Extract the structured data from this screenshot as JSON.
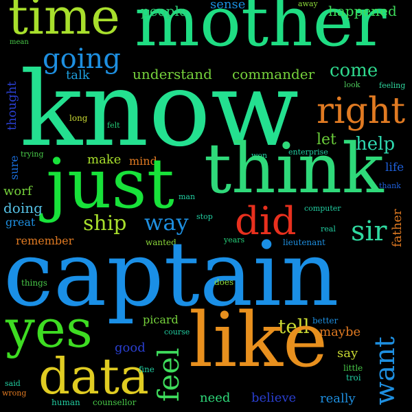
{
  "cloud": {
    "background": "#000000",
    "words": [
      {
        "text": "time",
        "color": "#a8df2c",
        "rotated": false
      },
      {
        "text": "mother",
        "color": "#1fdd83",
        "rotated": false
      },
      {
        "text": "people",
        "color": "#2ecf74",
        "rotated": false
      },
      {
        "text": "sense",
        "color": "#1a8fdf",
        "rotated": false
      },
      {
        "text": "away",
        "color": "#8cd93a",
        "rotated": false
      },
      {
        "text": "happened",
        "color": "#3edc5c",
        "rotated": false
      },
      {
        "text": "mean",
        "color": "#48c848",
        "rotated": false
      },
      {
        "text": "going",
        "color": "#1e8fe0",
        "rotated": false
      },
      {
        "text": "talk",
        "color": "#1ea0e0",
        "rotated": false
      },
      {
        "text": "understand",
        "color": "#76d23c",
        "rotated": false
      },
      {
        "text": "commander",
        "color": "#76d23c",
        "rotated": false
      },
      {
        "text": "come",
        "color": "#2fd98e",
        "rotated": false
      },
      {
        "text": "look",
        "color": "#4ecb5c",
        "rotated": false
      },
      {
        "text": "feeling",
        "color": "#2fd9a0",
        "rotated": false
      },
      {
        "text": "thought",
        "color": "#2a3fd0",
        "rotated": true
      },
      {
        "text": "know",
        "color": "#24e090",
        "rotated": false
      },
      {
        "text": "right",
        "color": "#e07a22",
        "rotated": false
      },
      {
        "text": "long",
        "color": "#c8d832",
        "rotated": false
      },
      {
        "text": "felt",
        "color": "#26d07a",
        "rotated": false
      },
      {
        "text": "let",
        "color": "#6acd3a",
        "rotated": false
      },
      {
        "text": "help",
        "color": "#2fd9b0",
        "rotated": false
      },
      {
        "text": "sure",
        "color": "#1a6fdf",
        "rotated": true
      },
      {
        "text": "trying",
        "color": "#48c848",
        "rotated": false
      },
      {
        "text": "make",
        "color": "#a8df2c",
        "rotated": false
      },
      {
        "text": "mind",
        "color": "#e07a22",
        "rotated": false
      },
      {
        "text": "won",
        "color": "#22cfa2",
        "rotated": false
      },
      {
        "text": "enterprise",
        "color": "#22cfa2",
        "rotated": false
      },
      {
        "text": "life",
        "color": "#1e5fd8",
        "rotated": false
      },
      {
        "text": "just",
        "color": "#18e23a",
        "rotated": false
      },
      {
        "text": "think",
        "color": "#2fd97a",
        "rotated": false
      },
      {
        "text": "thank",
        "color": "#1e5fd8",
        "rotated": false
      },
      {
        "text": "worf",
        "color": "#76d23c",
        "rotated": false
      },
      {
        "text": "man",
        "color": "#22cfa2",
        "rotated": false
      },
      {
        "text": "doing",
        "color": "#56c2e6",
        "rotated": false
      },
      {
        "text": "computer",
        "color": "#22cfa2",
        "rotated": false
      },
      {
        "text": "great",
        "color": "#1e8fe0",
        "rotated": false
      },
      {
        "text": "ship",
        "color": "#a8df2c",
        "rotated": false
      },
      {
        "text": "way",
        "color": "#1e8fe0",
        "rotated": false
      },
      {
        "text": "stop",
        "color": "#22cfa2",
        "rotated": false
      },
      {
        "text": "did",
        "color": "#e8301e",
        "rotated": false
      },
      {
        "text": "real",
        "color": "#22cfa2",
        "rotated": false
      },
      {
        "text": "sir",
        "color": "#2fd9a0",
        "rotated": false
      },
      {
        "text": "father",
        "color": "#e07a22",
        "rotated": true
      },
      {
        "text": "remember",
        "color": "#e07a22",
        "rotated": false
      },
      {
        "text": "wanted",
        "color": "#8cd93a",
        "rotated": false
      },
      {
        "text": "years",
        "color": "#26d07a",
        "rotated": false
      },
      {
        "text": "lieutenant",
        "color": "#1e8fe0",
        "rotated": false
      },
      {
        "text": "captain",
        "color": "#1a8fe6",
        "rotated": false
      },
      {
        "text": "things",
        "color": "#48c848",
        "rotated": false
      },
      {
        "text": "does",
        "color": "#8cd93a",
        "rotated": false
      },
      {
        "text": "yes",
        "color": "#3edc22",
        "rotated": false
      },
      {
        "text": "picard",
        "color": "#76d23c",
        "rotated": false
      },
      {
        "text": "course",
        "color": "#22cfa2",
        "rotated": false
      },
      {
        "text": "tell",
        "color": "#c8d832",
        "rotated": false
      },
      {
        "text": "better",
        "color": "#1e8fe0",
        "rotated": false
      },
      {
        "text": "maybe",
        "color": "#e07a22",
        "rotated": false
      },
      {
        "text": "want",
        "color": "#1e8fe0",
        "rotated": true
      },
      {
        "text": "like",
        "color": "#e8901e",
        "rotated": false
      },
      {
        "text": "good",
        "color": "#2a3fd0",
        "rotated": false
      },
      {
        "text": "feel",
        "color": "#3edc5c",
        "rotated": true
      },
      {
        "text": "say",
        "color": "#c8d832",
        "rotated": false
      },
      {
        "text": "data",
        "color": "#e0cc22",
        "rotated": false
      },
      {
        "text": "fine",
        "color": "#22cfa2",
        "rotated": false
      },
      {
        "text": "little",
        "color": "#48c848",
        "rotated": false
      },
      {
        "text": "troi",
        "color": "#22cfa2",
        "rotated": false
      },
      {
        "text": "said",
        "color": "#22cfa2",
        "rotated": false
      },
      {
        "text": "wrong",
        "color": "#e07a22",
        "rotated": false
      },
      {
        "text": "human",
        "color": "#22cfa2",
        "rotated": false
      },
      {
        "text": "counsellor",
        "color": "#48c848",
        "rotated": false
      },
      {
        "text": "need",
        "color": "#2fd97a",
        "rotated": false
      },
      {
        "text": "believe",
        "color": "#2a3fd0",
        "rotated": false
      },
      {
        "text": "really",
        "color": "#1e8fe0",
        "rotated": false
      }
    ]
  }
}
